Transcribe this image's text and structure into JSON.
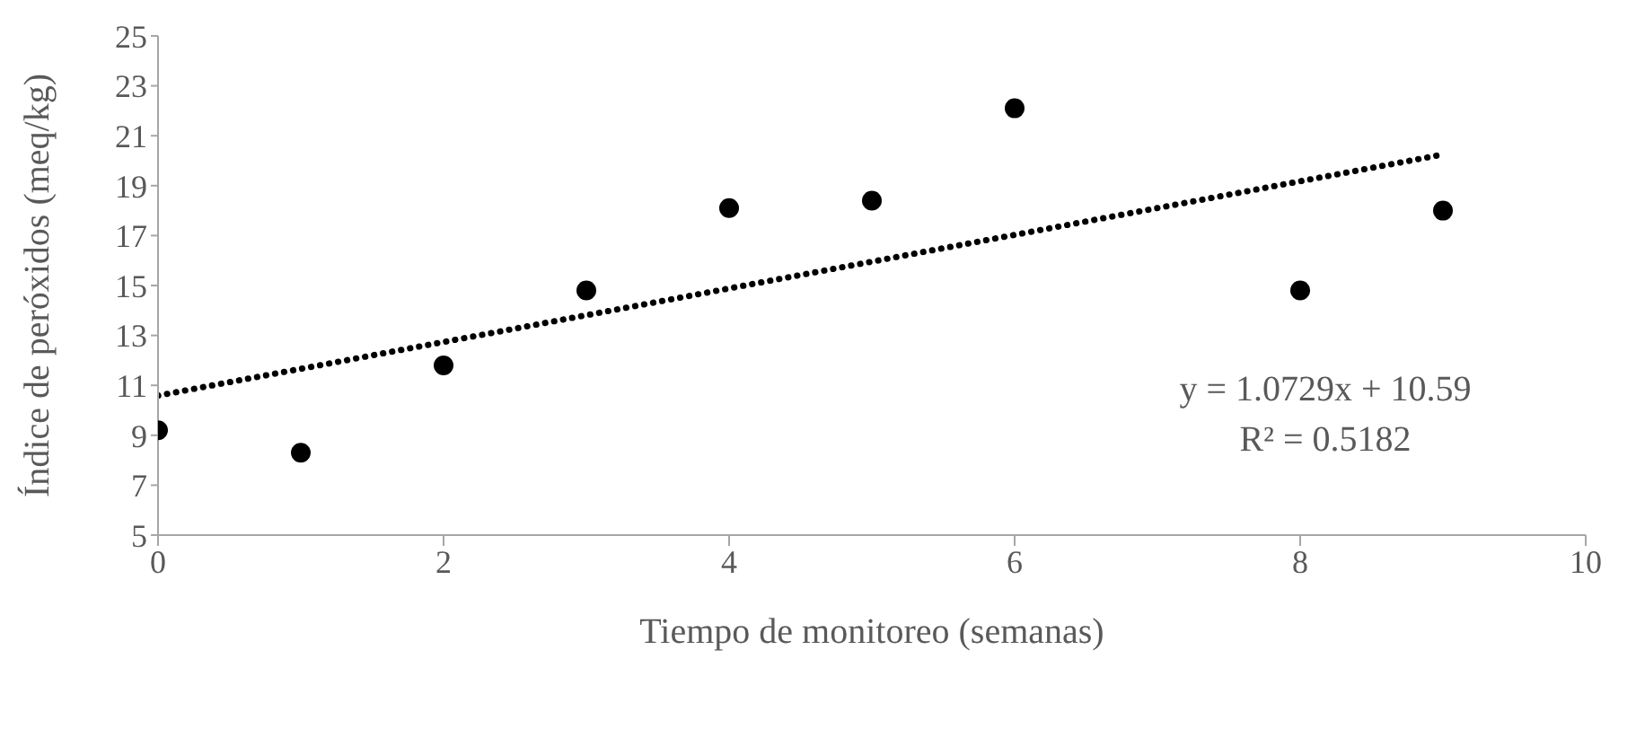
{
  "chart_data": {
    "type": "scatter",
    "xlabel": "Tiempo de monitoreo (semanas)",
    "ylabel": "Índice de peróxidos  (meq/kg)",
    "xlim": [
      0,
      10
    ],
    "xticks": [
      0,
      2,
      4,
      6,
      8,
      10
    ],
    "ylim": [
      5,
      25
    ],
    "yticks": [
      5,
      7,
      9,
      11,
      13,
      15,
      17,
      19,
      21,
      23,
      25
    ],
    "series": [
      {
        "marker": "circle",
        "color": "#000000",
        "x": [
          0,
          1,
          2,
          3,
          4,
          5,
          6,
          8,
          9
        ],
        "values": [
          9.2,
          8.3,
          11.8,
          14.8,
          18.1,
          18.4,
          22.1,
          14.8,
          18.0
        ]
      },
      {
        "type": "line",
        "marker": "none",
        "color": "#000000",
        "line_style": "dotted",
        "x": [
          0,
          9
        ],
        "values": [
          10.59,
          20.25
        ]
      }
    ],
    "annotations": [
      "y = 1.0729x + 10.59",
      "R² = 0.5182"
    ]
  }
}
